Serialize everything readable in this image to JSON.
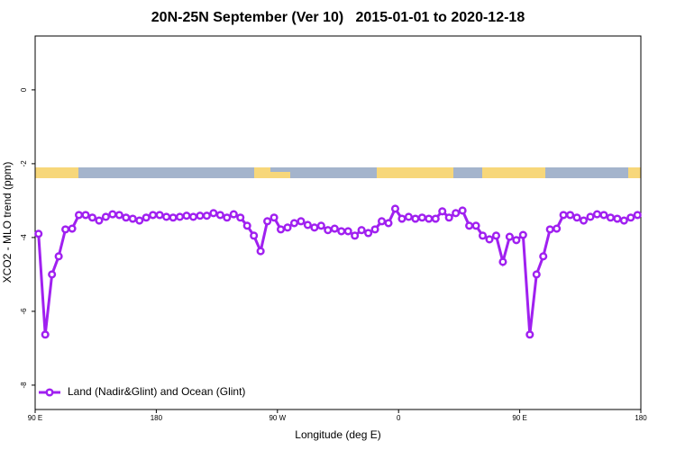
{
  "chart_data": {
    "type": "line",
    "title": "20N-25N September (Ver 10)   2015-01-01 to 2020-12-18",
    "xlabel": "Longitude (deg E)",
    "ylabel": "XCO2 - MLO trend (ppm)",
    "x": [
      92.5,
      97.5,
      102.5,
      107.5,
      112.5,
      117.5,
      122.5,
      127.5,
      132.5,
      137.5,
      142.5,
      147.5,
      152.5,
      157.5,
      162.5,
      167.5,
      172.5,
      177.5,
      182.5,
      187.5,
      192.5,
      197.5,
      202.5,
      207.5,
      212.5,
      217.5,
      222.5,
      227.5,
      232.5,
      237.5,
      242.5,
      247.5,
      252.5,
      257.5,
      262.5,
      267.5,
      272.5,
      277.5,
      282.5,
      287.5,
      292.5,
      297.5,
      302.5,
      307.5,
      312.5,
      317.5,
      322.5,
      327.5,
      332.5,
      337.5,
      342.5,
      347.5,
      352.5,
      357.5,
      362.5,
      367.5,
      372.5,
      377.5,
      382.5,
      387.5,
      392.5,
      397.5,
      402.5,
      407.5,
      412.5,
      417.5,
      422.5,
      427.5,
      432.5,
      437.5,
      442.5,
      447.5,
      452.5,
      457.5,
      462.5,
      467.5,
      472.5,
      477.5,
      482.5,
      487.5,
      492.5,
      497.5,
      502.5,
      507.5,
      512.5,
      517.5,
      522.5,
      527.5,
      532.5,
      537.5
    ],
    "series": [
      {
        "name": "Land (Nadir&Glint) and Ocean (Glint)",
        "color": "#a020f0",
        "values": [
          -3.9,
          -6.63,
          -5.0,
          -4.51,
          -3.78,
          -3.76,
          -3.39,
          -3.39,
          -3.46,
          -3.54,
          -3.44,
          -3.37,
          -3.39,
          -3.46,
          -3.49,
          -3.54,
          -3.46,
          -3.39,
          -3.39,
          -3.44,
          -3.46,
          -3.44,
          -3.41,
          -3.44,
          -3.41,
          -3.41,
          -3.34,
          -3.39,
          -3.46,
          -3.37,
          -3.46,
          -3.68,
          -3.95,
          -4.37,
          -3.56,
          -3.46,
          -3.78,
          -3.73,
          -3.61,
          -3.56,
          -3.66,
          -3.73,
          -3.68,
          -3.8,
          -3.76,
          -3.83,
          -3.83,
          -3.95,
          -3.8,
          -3.88,
          -3.78,
          -3.56,
          -3.61,
          -3.22,
          -3.49,
          -3.44,
          -3.49,
          -3.46,
          -3.49,
          -3.49,
          -3.29,
          -3.46,
          -3.34,
          -3.27,
          -3.68,
          -3.68,
          -3.95,
          -4.05,
          -3.95,
          -4.66,
          -3.98,
          -4.07,
          -3.93,
          -6.63,
          -5.0,
          -4.51,
          -3.78,
          -3.76,
          -3.39,
          -3.39,
          -3.46,
          -3.54,
          -3.44,
          -3.37,
          -3.39,
          -3.46,
          -3.49,
          -3.54,
          -3.46,
          -3.39
        ]
      }
    ],
    "xlim": [
      90,
      540
    ],
    "ylim": [
      1.46,
      -8.66
    ],
    "xticks": [
      {
        "value": 90,
        "label": "90 E"
      },
      180,
      {
        "value": 270,
        "label": "90 W"
      },
      {
        "value": 360,
        "label": "0"
      },
      {
        "value": 450,
        "label": "90 E"
      },
      {
        "value": 540,
        "label": "180"
      }
    ],
    "yticks": [
      0,
      -2,
      -4,
      -6,
      -8
    ],
    "legend": "lower left"
  }
}
